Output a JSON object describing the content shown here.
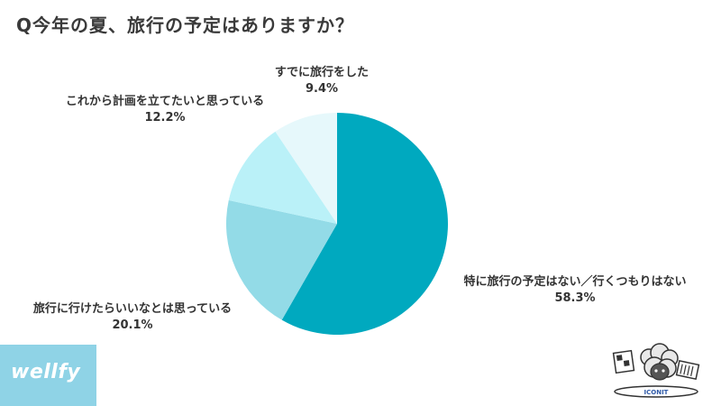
{
  "title": "Q今年の夏、旅行の予定はありますか？",
  "chart_data": {
    "type": "pie",
    "title": "Q今年の夏、旅行の予定はありますか？",
    "slices": [
      {
        "label": "特に旅行の予定はない／行くつもりはない",
        "value": 58.3,
        "display": "58.3%",
        "color": "#00a9bf"
      },
      {
        "label": "旅行に行けたらいいなとは思っている",
        "value": 20.1,
        "display": "20.1%",
        "color": "#93dbe7"
      },
      {
        "label": "これから計画を立てたいと思っている",
        "value": 12.2,
        "display": "12.2%",
        "color": "#baf1f8"
      },
      {
        "label": "すでに旅行をした",
        "value": 9.4,
        "display": "9.4%",
        "color": "#e6f8fb"
      }
    ],
    "start_angle_deg": 0,
    "direction": "clockwise",
    "legend": "none"
  },
  "brand": {
    "logo_text": "wellfy",
    "badge_color": "#8fd3e6",
    "mascot_icon": "sheep-mascot-icon",
    "mascot_text": "ICONIT"
  }
}
